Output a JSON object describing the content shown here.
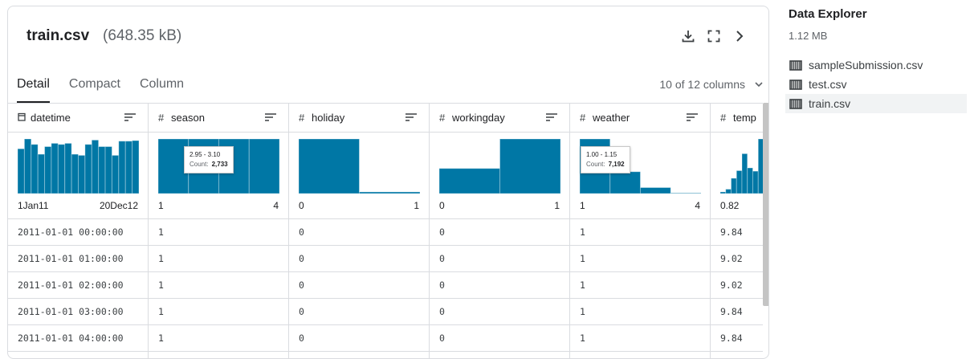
{
  "file": {
    "name": "train.csv",
    "size": "(648.35 kB)"
  },
  "header_icons": [
    "download-icon",
    "fullscreen-icon",
    "chevron-right-icon"
  ],
  "tabs": [
    {
      "label": "Detail",
      "active": true
    },
    {
      "label": "Compact",
      "active": false
    },
    {
      "label": "Column",
      "active": false
    }
  ],
  "columns_summary": "10 of 12 columns",
  "columns": [
    {
      "name": "datetime",
      "type_icon": "calendar-icon",
      "range_lo": "1Jan11",
      "range_hi": "20Dec12",
      "hist": [
        0.82,
        1.0,
        0.9,
        0.72,
        0.86,
        0.92,
        0.9,
        0.92,
        0.72,
        0.7,
        0.9,
        0.98,
        0.86,
        0.86,
        0.7,
        0.96,
        0.96,
        0.97
      ],
      "cells": [
        "2011-01-01 00:00:00",
        "2011-01-01 01:00:00",
        "2011-01-01 02:00:00",
        "2011-01-01 03:00:00",
        "2011-01-01 04:00:00"
      ]
    },
    {
      "name": "season",
      "type_icon": "hash-icon",
      "range_lo": "1",
      "range_hi": "4",
      "hist": [
        1.0,
        1.0,
        1.0,
        1.0
      ],
      "tooltip": {
        "range": "2.95 - 3.10",
        "count_label": "Count:",
        "count": "2,733"
      },
      "cells": [
        "1",
        "1",
        "1",
        "1",
        "1"
      ]
    },
    {
      "name": "holiday",
      "type_icon": "hash-icon",
      "range_lo": "0",
      "range_hi": "1",
      "hist": [
        1.0,
        0.03
      ],
      "cells": [
        "0",
        "0",
        "0",
        "0",
        "0"
      ]
    },
    {
      "name": "workingday",
      "type_icon": "hash-icon",
      "range_lo": "0",
      "range_hi": "1",
      "hist": [
        0.46,
        1.0
      ],
      "cells": [
        "0",
        "0",
        "0",
        "0",
        "0"
      ]
    },
    {
      "name": "weather",
      "type_icon": "hash-icon",
      "range_lo": "1",
      "range_hi": "4",
      "hist": [
        1.0,
        0.4,
        0.11,
        0.01
      ],
      "tooltip": {
        "range": "1.00 - 1.15",
        "count_label": "Count:",
        "count": "7,192"
      },
      "cells": [
        "1",
        "1",
        "1",
        "1",
        "1"
      ]
    },
    {
      "name": "temp",
      "type_icon": "hash-icon",
      "range_lo": "0.82",
      "range_hi": "",
      "hist": [
        0.03,
        0.08,
        0.28,
        0.42,
        0.73,
        0.47,
        0.41,
        1.0
      ],
      "cells": [
        "9.84",
        "9.02",
        "9.02",
        "9.84",
        "9.84"
      ]
    }
  ],
  "colors": {
    "bar": "#0077a5",
    "border": "#dadce0"
  },
  "sidebar": {
    "title": "Data Explorer",
    "size": "1.12 MB",
    "files": [
      {
        "name": "sampleSubmission.csv",
        "selected": false
      },
      {
        "name": "test.csv",
        "selected": false
      },
      {
        "name": "train.csv",
        "selected": true
      }
    ]
  }
}
